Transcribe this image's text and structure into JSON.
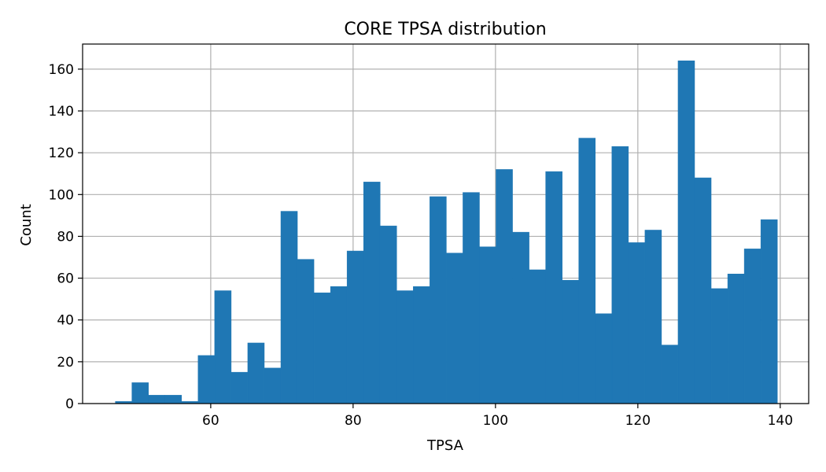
{
  "chart_data": {
    "type": "bar",
    "title": "CORE TPSA distribution",
    "xlabel": "TPSA",
    "ylabel": "Count",
    "xlim": [
      42,
      144
    ],
    "ylim": [
      0,
      172
    ],
    "grid": true,
    "bar_color": "#1f77b4",
    "x_ticks": [
      60,
      80,
      100,
      120,
      140
    ],
    "y_ticks": [
      0,
      20,
      40,
      60,
      80,
      100,
      120,
      140,
      160
    ],
    "bins": {
      "start": 46.6,
      "width": 2.325,
      "counts": [
        1,
        10,
        4,
        4,
        1,
        23,
        54,
        15,
        29,
        17,
        92,
        69,
        53,
        56,
        73,
        106,
        85,
        54,
        56,
        99,
        72,
        101,
        75,
        112,
        82,
        64,
        111,
        59,
        127,
        43,
        123,
        77,
        83,
        28,
        164,
        108,
        55,
        62,
        74,
        88
      ]
    }
  }
}
